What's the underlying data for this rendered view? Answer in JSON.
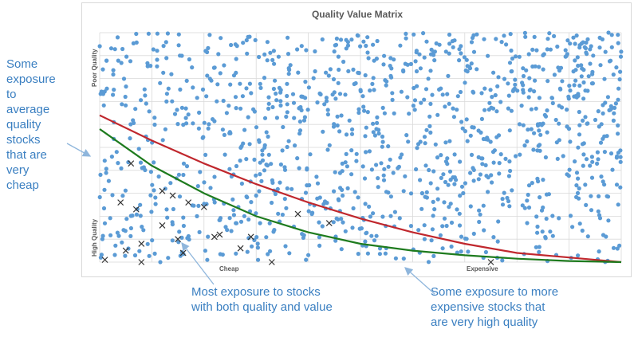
{
  "chart_data": {
    "type": "scatter",
    "title": "Quality Value Matrix",
    "xlabel_left": "Cheap",
    "xlabel_right": "Expensive",
    "ylabel_top": "Poor Quality",
    "ylabel_bottom": "High Quality",
    "xlim": [
      0,
      1
    ],
    "ylim": [
      0,
      1
    ],
    "grid": true,
    "dot_count": 1200,
    "dot_seed": 7,
    "colors": {
      "dots": "#5b9bd5",
      "red_curve": "#c0272d",
      "green_curve": "#1e7b1e",
      "x_markers": "#333333",
      "grid": "#d9d9d9",
      "annotation": "#3a7fc1"
    },
    "red_curve": [
      [
        0,
        0.64
      ],
      [
        0.1,
        0.53
      ],
      [
        0.2,
        0.43
      ],
      [
        0.3,
        0.34
      ],
      [
        0.4,
        0.26
      ],
      [
        0.5,
        0.19
      ],
      [
        0.6,
        0.13
      ],
      [
        0.7,
        0.08
      ],
      [
        0.8,
        0.04
      ],
      [
        0.9,
        0.02
      ],
      [
        1.0,
        0.0
      ]
    ],
    "green_curve": [
      [
        0,
        0.58
      ],
      [
        0.1,
        0.42
      ],
      [
        0.2,
        0.3
      ],
      [
        0.3,
        0.2
      ],
      [
        0.4,
        0.13
      ],
      [
        0.5,
        0.08
      ],
      [
        0.6,
        0.05
      ],
      [
        0.7,
        0.03
      ],
      [
        0.8,
        0.015
      ],
      [
        0.9,
        0.005
      ],
      [
        1.0,
        0.0
      ]
    ],
    "x_markers": [
      [
        0.06,
        0.43
      ],
      [
        0.04,
        0.26
      ],
      [
        0.07,
        0.23
      ],
      [
        0.12,
        0.31
      ],
      [
        0.14,
        0.29
      ],
      [
        0.17,
        0.26
      ],
      [
        0.2,
        0.24
      ],
      [
        0.12,
        0.16
      ],
      [
        0.15,
        0.1
      ],
      [
        0.08,
        0.08
      ],
      [
        0.05,
        0.05
      ],
      [
        0.01,
        0.01
      ],
      [
        0.16,
        0.04
      ],
      [
        0.22,
        0.11
      ],
      [
        0.23,
        0.12
      ],
      [
        0.29,
        0.11
      ],
      [
        0.27,
        0.06
      ],
      [
        0.33,
        0.0
      ],
      [
        0.38,
        0.21
      ],
      [
        0.44,
        0.17
      ],
      [
        0.75,
        0.0
      ],
      [
        0.08,
        0.0
      ]
    ]
  },
  "annotations": {
    "left": [
      "Some",
      "exposure",
      "to",
      "average",
      "quality",
      "stocks",
      "that are",
      "very",
      "cheap"
    ],
    "bottom_left": [
      "Most exposure to stocks",
      "with both quality and value"
    ],
    "bottom_right": [
      "Some exposure to more",
      "expensive stocks that",
      "are very high quality"
    ]
  }
}
